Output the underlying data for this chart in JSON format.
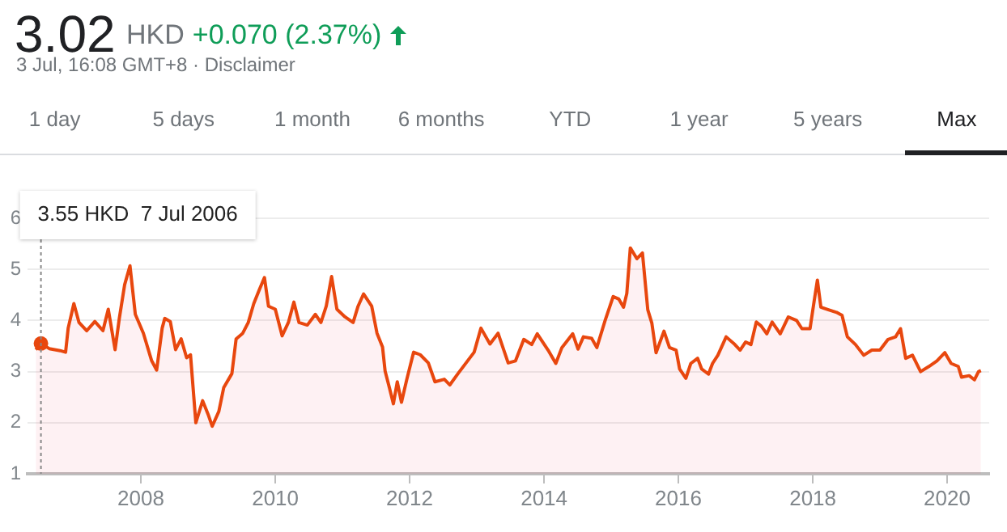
{
  "chart_data": {
    "type": "area",
    "title": "3.02",
    "subtitle": "3 Jul, 16:08 GMT+8 · Disclaimer",
    "annotations": [
      "HKD",
      "+0.070 (2.37%)",
      "1 day",
      "5 days",
      "1 month",
      "6 months",
      "YTD",
      "1 year",
      "5 years",
      "Max"
    ],
    "ref_lines": [
      {
        "axis": "x",
        "value": "2006-07-07",
        "label": "3.55 HKD  7 Jul 2006",
        "color": "#888888",
        "line_style": "dotted"
      }
    ],
    "color": "#e8470e",
    "x": [
      "2006-06-09",
      "2006-07-07",
      "2006-08-21",
      "2006-10-19",
      "2006-11-18",
      "2006-12-02",
      "2007-01-02",
      "2007-01-30",
      "2007-03-13",
      "2007-04-26",
      "2007-06-09",
      "2007-07-08",
      "2007-08-14",
      "2007-09-06",
      "2007-10-05",
      "2007-11-03",
      "2007-12-02",
      "2008-01-15",
      "2008-02-28",
      "2008-03-27",
      "2008-04-26",
      "2008-05-10",
      "2008-06-09",
      "2008-07-08",
      "2008-08-07",
      "2008-09-06",
      "2008-09-27",
      "2008-10-26",
      "2008-12-02",
      "2009-01-01",
      "2009-01-23",
      "2009-02-28",
      "2009-03-27",
      "2009-05-10",
      "2009-06-02",
      "2009-07-08",
      "2009-08-07",
      "2009-09-06",
      "2009-10-05",
      "2009-11-03",
      "2009-11-25",
      "2010-01-01",
      "2010-02-07",
      "2010-03-13",
      "2010-04-12",
      "2010-05-10",
      "2010-06-24",
      "2010-08-07",
      "2010-09-06",
      "2010-10-05",
      "2010-11-03",
      "2010-12-02",
      "2011-01-15",
      "2011-02-28",
      "2011-03-27",
      "2011-04-26",
      "2011-06-09",
      "2011-07-08",
      "2011-08-07",
      "2011-08-21",
      "2011-09-13",
      "2011-10-05",
      "2011-10-26",
      "2011-11-18",
      "2011-12-17",
      "2012-01-23",
      "2012-02-28",
      "2012-04-12",
      "2012-05-18",
      "2012-07-08",
      "2012-08-07",
      "2012-09-20",
      "2012-11-03",
      "2012-12-17",
      "2013-01-23",
      "2013-03-13",
      "2013-04-26",
      "2013-06-20",
      "2013-07-30",
      "2013-09-13",
      "2013-10-26",
      "2013-11-25",
      "2014-01-23",
      "2014-03-06",
      "2014-04-08",
      "2014-06-06",
      "2014-07-05",
      "2014-08-03",
      "2014-09-17",
      "2014-10-15",
      "2014-11-29",
      "2015-01-12",
      "2015-02-11",
      "2015-03-09",
      "2015-03-27",
      "2015-04-15",
      "2015-05-21",
      "2015-06-20",
      "2015-07-19",
      "2015-08-10",
      "2015-09-02",
      "2015-10-15",
      "2015-11-14",
      "2015-12-20",
      "2016-01-08",
      "2016-02-11",
      "2016-03-09",
      "2016-04-15",
      "2016-05-07",
      "2016-06-13",
      "2016-07-05",
      "2016-08-03",
      "2016-09-17",
      "2016-11-03",
      "2016-12-02",
      "2017-01-01",
      "2017-01-30",
      "2017-02-28",
      "2017-03-27",
      "2017-04-26",
      "2017-05-25",
      "2017-07-08",
      "2017-08-21",
      "2017-10-05",
      "2017-11-03",
      "2017-12-17",
      "2018-01-08",
      "2018-01-26",
      "2018-02-14",
      "2018-03-27",
      "2018-05-10",
      "2018-06-09",
      "2018-07-08",
      "2018-08-21",
      "2018-10-05",
      "2018-11-18",
      "2019-01-01",
      "2019-02-14",
      "2019-03-27",
      "2019-04-23",
      "2019-05-21",
      "2019-06-27",
      "2019-08-10",
      "2019-09-24",
      "2019-11-07",
      "2019-12-20",
      "2020-01-23",
      "2020-03-02",
      "2020-03-20",
      "2020-04-30",
      "2020-05-29",
      "2020-06-20",
      "2020-07-03"
    ],
    "values": [
      3.43,
      3.55,
      3.45,
      3.41,
      3.38,
      3.85,
      4.33,
      3.96,
      3.8,
      3.98,
      3.8,
      4.22,
      3.43,
      4.04,
      4.7,
      5.07,
      4.12,
      3.75,
      3.22,
      3.03,
      3.85,
      4.04,
      3.98,
      3.43,
      3.64,
      3.27,
      3.33,
      2.0,
      2.43,
      2.16,
      1.93,
      2.22,
      2.69,
      2.96,
      3.64,
      3.75,
      3.96,
      4.33,
      4.59,
      4.84,
      4.28,
      4.22,
      3.7,
      3.96,
      4.36,
      3.96,
      3.91,
      4.12,
      3.96,
      4.28,
      4.86,
      4.22,
      4.07,
      3.96,
      4.28,
      4.52,
      4.28,
      3.75,
      3.48,
      3.01,
      2.69,
      2.37,
      2.8,
      2.4,
      2.85,
      3.38,
      3.33,
      3.17,
      2.8,
      2.85,
      2.74,
      2.96,
      3.17,
      3.38,
      3.85,
      3.54,
      3.75,
      3.17,
      3.21,
      3.63,
      3.53,
      3.74,
      3.42,
      3.16,
      3.47,
      3.74,
      3.44,
      3.68,
      3.65,
      3.47,
      4.0,
      4.47,
      4.42,
      4.26,
      4.53,
      5.42,
      5.21,
      5.32,
      4.21,
      3.95,
      3.37,
      3.79,
      3.47,
      3.42,
      3.05,
      2.87,
      3.16,
      3.26,
      3.05,
      2.95,
      3.16,
      3.32,
      3.68,
      3.53,
      3.42,
      3.58,
      3.53,
      3.97,
      3.89,
      3.74,
      3.97,
      3.74,
      4.07,
      4.0,
      3.84,
      3.84,
      4.37,
      4.79,
      4.26,
      4.21,
      4.16,
      4.1,
      3.68,
      3.53,
      3.32,
      3.42,
      3.42,
      3.63,
      3.68,
      3.84,
      3.26,
      3.32,
      3.0,
      3.1,
      3.21,
      3.37,
      3.16,
      3.1,
      2.89,
      2.92,
      2.84,
      3.0,
      3.02
    ],
    "xlim": [
      "2006-04-25",
      "2020-08-17"
    ],
    "xticks": [
      "2008",
      "2010",
      "2012",
      "2014",
      "2016",
      "2018",
      "2020"
    ],
    "ylim": [
      1,
      6
    ],
    "yticks": [
      1,
      2,
      3,
      4,
      5,
      6
    ],
    "grid": "y"
  }
}
